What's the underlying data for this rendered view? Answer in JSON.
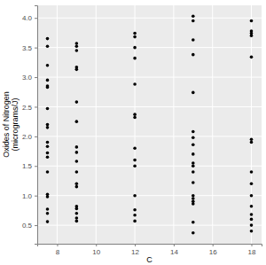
{
  "chart_data": {
    "type": "scatter",
    "x_label": "C",
    "y_label": "Oxides of Nitrogen\n(micrograms/J)",
    "x": [
      7.5,
      7.5,
      7.5,
      7.5,
      7.5,
      7.5,
      7.5,
      7.5,
      7.5,
      7.5,
      7.5,
      7.5,
      7.5,
      7.5,
      7.5,
      7.5,
      7.5,
      7.5,
      7.5,
      9,
      9,
      9,
      9,
      9,
      9,
      9,
      9,
      9,
      9,
      9,
      9,
      9,
      9,
      9,
      9,
      9,
      9,
      12,
      12,
      12,
      12,
      12,
      12,
      12,
      12,
      12,
      12,
      12,
      12,
      12,
      12,
      15,
      15,
      15,
      15,
      15,
      15,
      15,
      15,
      15,
      15,
      15,
      15,
      15,
      15,
      15,
      15,
      15,
      15,
      15,
      18,
      18,
      18,
      18,
      18,
      18,
      18,
      18,
      18,
      18,
      18,
      18,
      18,
      18,
      18
    ],
    "values": [
      3.65,
      3.52,
      3.2,
      2.95,
      2.85,
      2.83,
      2.47,
      2.2,
      2.15,
      1.9,
      1.83,
      1.72,
      1.65,
      1.4,
      1.02,
      0.98,
      0.77,
      0.7,
      0.56,
      3.57,
      3.52,
      3.45,
      3.17,
      3.13,
      2.58,
      2.25,
      1.82,
      1.73,
      1.58,
      1.4,
      1.2,
      1.15,
      0.82,
      0.78,
      0.7,
      0.62,
      0.57,
      3.74,
      3.68,
      3.5,
      3.32,
      2.88,
      2.37,
      2.32,
      1.8,
      1.6,
      1.5,
      1.0,
      0.76,
      0.67,
      0.57,
      4.03,
      3.95,
      3.63,
      3.38,
      2.74,
      2.08,
      1.98,
      1.86,
      1.7,
      1.55,
      1.5,
      1.4,
      1.22,
      1.0,
      0.95,
      0.9,
      0.86,
      0.55,
      0.37,
      3.95,
      3.78,
      3.74,
      3.7,
      3.34,
      1.95,
      1.9,
      1.4,
      1.2,
      1.0,
      0.82,
      0.68,
      0.6,
      0.5,
      0.4
    ],
    "color": "#000000",
    "marker": "circle",
    "xlim": [
      6.975,
      18.525
    ],
    "ylim": [
      0.187,
      4.213
    ],
    "xticks": [
      8,
      10,
      12,
      14,
      16,
      18
    ],
    "yticks": [
      0.5,
      {
        "value": 1,
        "label": "1.0"
      },
      1.5,
      {
        "value": 2,
        "label": "2.0"
      },
      2.5,
      {
        "value": 3,
        "label": "3.0"
      },
      3.5,
      {
        "value": 4,
        "label": "4.0"
      }
    ],
    "grid": true
  }
}
